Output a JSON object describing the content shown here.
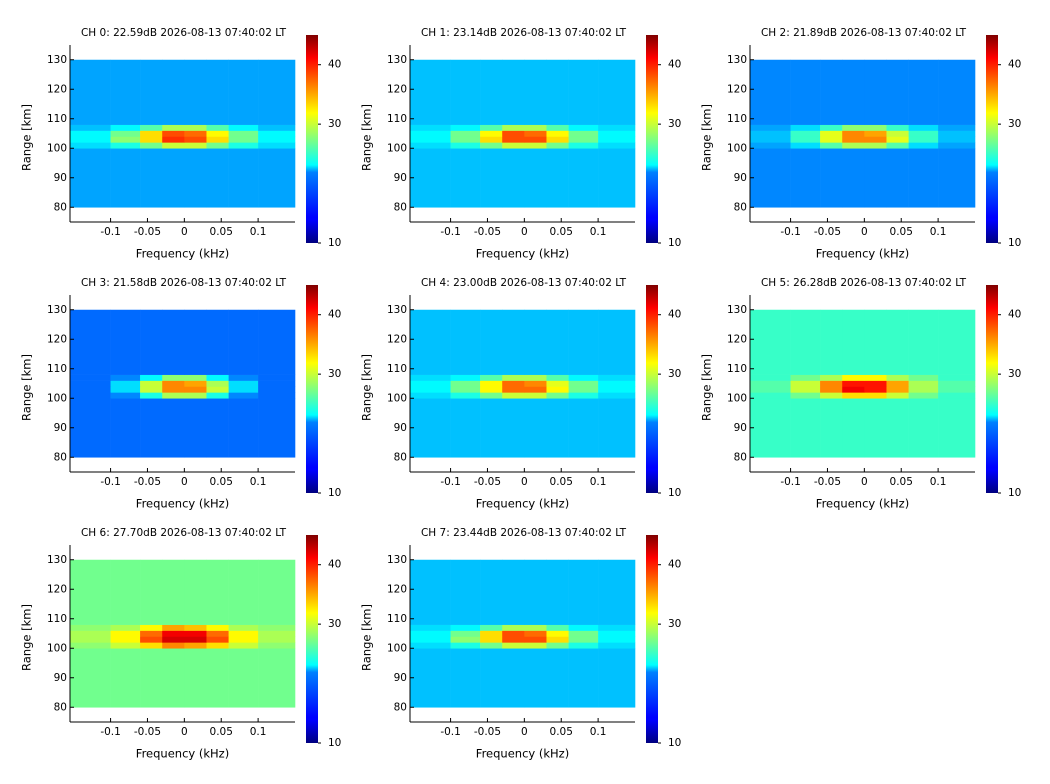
{
  "chart_data": [
    {
      "type": "heatmap",
      "title": "CH 0: 22.59dB 2026-08-13 07:40:02 LT",
      "xlabel": "Frequency (kHz)",
      "ylabel": "Range [km]",
      "xlim": [
        -0.155,
        0.15
      ],
      "ylim": [
        75,
        135
      ],
      "xticks": [
        -0.1,
        -0.05,
        0,
        0.05,
        0.1
      ],
      "yticks": [
        80,
        90,
        100,
        110,
        120,
        130
      ],
      "x_bins": [
        -0.155,
        -0.1,
        -0.06,
        -0.03,
        0,
        0.03,
        0.06,
        0.1,
        0.15
      ],
      "y_bins": [
        80,
        100,
        102,
        104,
        106,
        108,
        130
      ],
      "z": [
        [
          20,
          20,
          20,
          20,
          20,
          20,
          20,
          20
        ],
        [
          22,
          24,
          27,
          30,
          30,
          27,
          24,
          22
        ],
        [
          23,
          28,
          33,
          39,
          38,
          33,
          27,
          23
        ],
        [
          23,
          27,
          33,
          38,
          37,
          32,
          27,
          23
        ],
        [
          21,
          23,
          26,
          29,
          29,
          26,
          23,
          21
        ],
        [
          20,
          20,
          20,
          20,
          20,
          20,
          20,
          20
        ]
      ],
      "colormap": "jet",
      "clim": [
        10,
        45
      ],
      "cticks": [
        10,
        30,
        40
      ]
    },
    {
      "type": "heatmap",
      "title": "CH 1: 23.14dB 2026-08-13 07:40:02 LT",
      "xlabel": "Frequency (kHz)",
      "ylabel": "Range [km]",
      "xlim": [
        -0.155,
        0.15
      ],
      "ylim": [
        75,
        135
      ],
      "xticks": [
        -0.1,
        -0.05,
        0,
        0.05,
        0.1
      ],
      "yticks": [
        80,
        90,
        100,
        110,
        120,
        130
      ],
      "x_bins": [
        -0.155,
        -0.1,
        -0.06,
        -0.03,
        0,
        0.03,
        0.06,
        0.1,
        0.15
      ],
      "y_bins": [
        80,
        100,
        102,
        104,
        106,
        108,
        130
      ],
      "z": [
        [
          21,
          21,
          21,
          21,
          21,
          21,
          21,
          21
        ],
        [
          22,
          24,
          27,
          30,
          30,
          27,
          24,
          22
        ],
        [
          23,
          27,
          33,
          38,
          38,
          33,
          27,
          23
        ],
        [
          23,
          27,
          32,
          38,
          37,
          32,
          27,
          23
        ],
        [
          22,
          23,
          26,
          29,
          29,
          26,
          23,
          22
        ],
        [
          21,
          21,
          21,
          21,
          21,
          21,
          21,
          21
        ]
      ],
      "colormap": "jet",
      "clim": [
        10,
        45
      ],
      "cticks": [
        10,
        30,
        40
      ]
    },
    {
      "type": "heatmap",
      "title": "CH 2: 21.89dB 2026-08-13 07:40:02 LT",
      "xlabel": "Frequency (kHz)",
      "ylabel": "Range [km]",
      "xlim": [
        -0.155,
        0.15
      ],
      "ylim": [
        75,
        135
      ],
      "xticks": [
        -0.1,
        -0.05,
        0,
        0.05,
        0.1
      ],
      "yticks": [
        80,
        90,
        100,
        110,
        120,
        130
      ],
      "x_bins": [
        -0.155,
        -0.1,
        -0.06,
        -0.03,
        0,
        0.03,
        0.06,
        0.1,
        0.15
      ],
      "y_bins": [
        80,
        100,
        102,
        104,
        106,
        108,
        130
      ],
      "z": [
        [
          19,
          19,
          19,
          19,
          19,
          19,
          19,
          19
        ],
        [
          20,
          22,
          26,
          29,
          29,
          26,
          22,
          20
        ],
        [
          21,
          25,
          31,
          36,
          36,
          31,
          25,
          21
        ],
        [
          21,
          25,
          31,
          36,
          35,
          30,
          25,
          21
        ],
        [
          20,
          22,
          25,
          28,
          28,
          25,
          22,
          20
        ],
        [
          19,
          19,
          19,
          19,
          19,
          19,
          19,
          19
        ]
      ],
      "colormap": "jet",
      "clim": [
        10,
        45
      ],
      "cticks": [
        10,
        30,
        40
      ]
    },
    {
      "type": "heatmap",
      "title": "CH 3: 21.58dB 2026-08-13 07:40:02 LT",
      "xlabel": "Frequency (kHz)",
      "ylabel": "Range [km]",
      "xlim": [
        -0.155,
        0.15
      ],
      "ylim": [
        75,
        135
      ],
      "xticks": [
        -0.1,
        -0.05,
        0,
        0.05,
        0.1
      ],
      "yticks": [
        80,
        90,
        100,
        110,
        120,
        130
      ],
      "x_bins": [
        -0.155,
        -0.1,
        -0.06,
        -0.03,
        0,
        0.03,
        0.06,
        0.1,
        0.15
      ],
      "y_bins": [
        80,
        100,
        102,
        104,
        106,
        108,
        130
      ],
      "z": [
        [
          18,
          18,
          18,
          18,
          18,
          18,
          18,
          18
        ],
        [
          18,
          19,
          24,
          29,
          29,
          24,
          19,
          18
        ],
        [
          18,
          22,
          30,
          36,
          36,
          30,
          22,
          18
        ],
        [
          18,
          22,
          30,
          36,
          35,
          29,
          22,
          18
        ],
        [
          18,
          19,
          23,
          28,
          28,
          23,
          19,
          18
        ],
        [
          18,
          18,
          18,
          18,
          18,
          18,
          18,
          18
        ]
      ],
      "colormap": "jet",
      "clim": [
        10,
        45
      ],
      "cticks": [
        10,
        30,
        40
      ]
    },
    {
      "type": "heatmap",
      "title": "CH 4: 23.00dB 2026-08-13 07:40:02 LT",
      "xlabel": "Frequency (kHz)",
      "ylabel": "Range [km]",
      "xlim": [
        -0.155,
        0.15
      ],
      "ylim": [
        75,
        135
      ],
      "xticks": [
        -0.1,
        -0.05,
        0,
        0.05,
        0.1
      ],
      "yticks": [
        80,
        90,
        100,
        110,
        120,
        130
      ],
      "x_bins": [
        -0.155,
        -0.1,
        -0.06,
        -0.03,
        0,
        0.03,
        0.06,
        0.1,
        0.15
      ],
      "y_bins": [
        80,
        100,
        102,
        104,
        106,
        108,
        130
      ],
      "z": [
        [
          21,
          21,
          21,
          21,
          21,
          21,
          21,
          21
        ],
        [
          22,
          24,
          27,
          30,
          30,
          27,
          24,
          22
        ],
        [
          23,
          27,
          32,
          37,
          37,
          32,
          27,
          23
        ],
        [
          23,
          27,
          32,
          37,
          36,
          31,
          27,
          23
        ],
        [
          22,
          23,
          26,
          29,
          29,
          26,
          23,
          22
        ],
        [
          21,
          21,
          21,
          21,
          21,
          21,
          21,
          21
        ]
      ],
      "colormap": "jet",
      "clim": [
        10,
        45
      ],
      "cticks": [
        10,
        30,
        40
      ]
    },
    {
      "type": "heatmap",
      "title": "CH 5: 26.28dB 2026-08-13 07:40:02 LT",
      "xlabel": "Frequency (kHz)",
      "ylabel": "Range [km]",
      "xlim": [
        -0.155,
        0.15
      ],
      "ylim": [
        75,
        135
      ],
      "xticks": [
        -0.1,
        -0.05,
        0,
        0.05,
        0.1
      ],
      "yticks": [
        80,
        90,
        100,
        110,
        120,
        130
      ],
      "x_bins": [
        -0.155,
        -0.1,
        -0.06,
        -0.03,
        0,
        0.03,
        0.06,
        0.1,
        0.15
      ],
      "y_bins": [
        80,
        100,
        102,
        104,
        106,
        108,
        130
      ],
      "z": [
        [
          25,
          25,
          25,
          25,
          25,
          25,
          25,
          25
        ],
        [
          25,
          27,
          30,
          33,
          33,
          30,
          27,
          25
        ],
        [
          26,
          30,
          36,
          41,
          40,
          35,
          29,
          26
        ],
        [
          26,
          30,
          36,
          40,
          40,
          35,
          29,
          26
        ],
        [
          25,
          27,
          29,
          32,
          32,
          29,
          27,
          25
        ],
        [
          25,
          25,
          25,
          25,
          25,
          25,
          25,
          25
        ]
      ],
      "colormap": "jet",
      "clim": [
        10,
        45
      ],
      "cticks": [
        10,
        30,
        40
      ]
    },
    {
      "type": "heatmap",
      "title": "CH 6: 27.70dB 2026-08-13 07:40:02 LT",
      "xlabel": "Frequency (kHz)",
      "ylabel": "Range [km]",
      "xlim": [
        -0.155,
        0.15
      ],
      "ylim": [
        75,
        135
      ],
      "xticks": [
        -0.1,
        -0.05,
        0,
        0.05,
        0.1
      ],
      "yticks": [
        80,
        90,
        100,
        110,
        120,
        130
      ],
      "x_bins": [
        -0.155,
        -0.1,
        -0.06,
        -0.03,
        0,
        0.03,
        0.06,
        0.1,
        0.15
      ],
      "y_bins": [
        80,
        100,
        102,
        104,
        106,
        108,
        130
      ],
      "z": [
        [
          27,
          27,
          27,
          27,
          27,
          27,
          27,
          27
        ],
        [
          28,
          30,
          33,
          36,
          35,
          33,
          30,
          28
        ],
        [
          29,
          32,
          38,
          42,
          42,
          38,
          32,
          29
        ],
        [
          29,
          32,
          37,
          41,
          41,
          37,
          32,
          29
        ],
        [
          28,
          29,
          32,
          35,
          34,
          32,
          29,
          28
        ],
        [
          27,
          27,
          27,
          27,
          27,
          27,
          27,
          27
        ]
      ],
      "colormap": "jet",
      "clim": [
        10,
        45
      ],
      "cticks": [
        10,
        30,
        40
      ]
    },
    {
      "type": "heatmap",
      "title": "CH 7: 23.44dB 2026-08-13 07:40:02 LT",
      "xlabel": "Frequency (kHz)",
      "ylabel": "Range [km]",
      "xlim": [
        -0.155,
        0.15
      ],
      "ylim": [
        75,
        135
      ],
      "xticks": [
        -0.1,
        -0.05,
        0,
        0.05,
        0.1
      ],
      "yticks": [
        80,
        90,
        100,
        110,
        120,
        130
      ],
      "x_bins": [
        -0.155,
        -0.1,
        -0.06,
        -0.03,
        0,
        0.03,
        0.06,
        0.1,
        0.15
      ],
      "y_bins": [
        80,
        100,
        102,
        104,
        106,
        108,
        130
      ],
      "z": [
        [
          21,
          21,
          21,
          21,
          21,
          21,
          21,
          21
        ],
        [
          22,
          24,
          27,
          30,
          30,
          27,
          24,
          22
        ],
        [
          23,
          28,
          33,
          38,
          38,
          33,
          27,
          23
        ],
        [
          23,
          27,
          33,
          38,
          37,
          32,
          27,
          23
        ],
        [
          22,
          23,
          26,
          29,
          29,
          26,
          23,
          22
        ],
        [
          21,
          21,
          21,
          21,
          21,
          21,
          21,
          21
        ]
      ],
      "colormap": "jet",
      "clim": [
        10,
        45
      ],
      "cticks": [
        10,
        30,
        40
      ]
    }
  ]
}
